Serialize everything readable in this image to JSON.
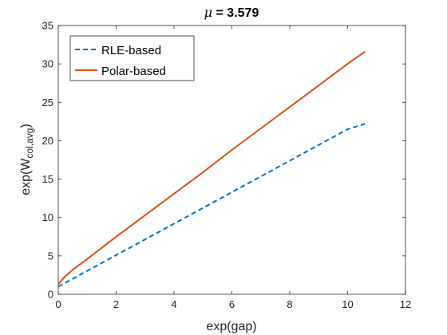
{
  "chart_data": {
    "type": "line",
    "title_symbol": "μ",
    "title_rest": " = 3.579",
    "xlabel": "exp(gap)",
    "ylabel_main": "exp(W",
    "ylabel_sub": "col,avg",
    "ylabel_close": ")",
    "xlim": [
      0,
      12
    ],
    "ylim": [
      0,
      35
    ],
    "xticks": [
      0,
      2,
      4,
      6,
      8,
      10,
      12
    ],
    "yticks": [
      0,
      5,
      10,
      15,
      20,
      25,
      30,
      35
    ],
    "grid": false,
    "legend_position": "top-left",
    "series": [
      {
        "name": "RLE-based",
        "color": "#0072BD",
        "dash": "dashed",
        "x": [
          0,
          1,
          2,
          3,
          4,
          5,
          6,
          7,
          8,
          9,
          10,
          10.6
        ],
        "y": [
          1.0,
          3.05,
          5.1,
          7.15,
          9.2,
          11.25,
          13.3,
          15.35,
          17.4,
          19.45,
          21.5,
          22.2
        ]
      },
      {
        "name": "Polar-based",
        "color": "#D95319",
        "dash": "solid",
        "x": [
          0,
          0.2,
          0.5,
          1,
          2,
          3,
          4,
          5,
          6,
          7,
          8,
          9,
          10,
          10.6
        ],
        "y": [
          1.3,
          2.2,
          3.2,
          4.6,
          7.5,
          10.3,
          13.1,
          15.9,
          18.8,
          21.6,
          24.4,
          27.2,
          30.0,
          31.6
        ]
      }
    ]
  }
}
